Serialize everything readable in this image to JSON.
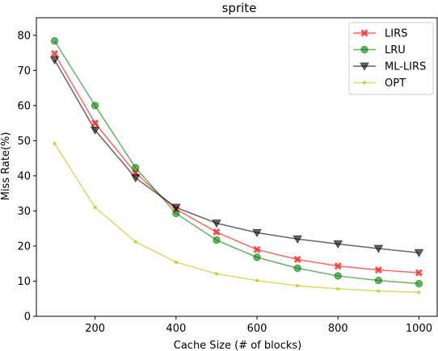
{
  "chart_data": {
    "type": "line",
    "title": "sprite",
    "xlabel": "Cache Size (# of blocks)",
    "ylabel": "Miss Rate(%)",
    "xlim": [
      55,
      1045
    ],
    "ylim": [
      0,
      85
    ],
    "x": [
      100,
      200,
      300,
      400,
      500,
      600,
      700,
      800,
      900,
      1000
    ],
    "xticks": [
      200,
      400,
      600,
      800,
      1000
    ],
    "yticks": [
      0,
      10,
      20,
      30,
      40,
      50,
      60,
      70,
      80
    ],
    "legend_position": "top-right",
    "grid": false,
    "series": [
      {
        "name": "LIRS",
        "color": "#ff0000",
        "marker": "X",
        "values": [
          74.8,
          55.0,
          40.8,
          30.5,
          24.0,
          19.0,
          16.2,
          14.3,
          13.2,
          12.4
        ]
      },
      {
        "name": "LRU",
        "color": "#008000",
        "marker": "circle",
        "values": [
          78.4,
          60.0,
          42.3,
          29.3,
          21.7,
          16.8,
          13.7,
          11.5,
          10.2,
          9.3
        ]
      },
      {
        "name": "ML-LIRS",
        "color": "#000000",
        "marker": "triangle-down",
        "values": [
          73.0,
          53.0,
          39.4,
          31.0,
          26.5,
          23.8,
          22.0,
          20.6,
          19.3,
          18.1
        ]
      },
      {
        "name": "OPT",
        "color": "#bfbf00",
        "marker": "dot",
        "values": [
          49.2,
          31.0,
          21.2,
          15.4,
          12.1,
          10.2,
          8.7,
          7.8,
          7.2,
          6.8
        ]
      }
    ]
  }
}
